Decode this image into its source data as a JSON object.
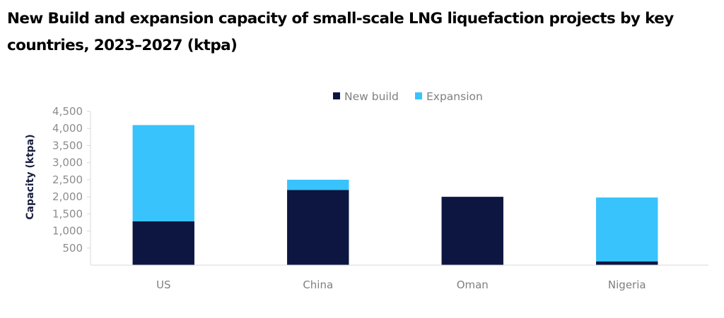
{
  "chart_data": {
    "type": "bar",
    "stacked": true,
    "title": "New Build and expansion capacity of small-scale LNG liquefaction projects by key countries, 2023–2027 (ktpa)",
    "xlabel": "",
    "ylabel": "Capacity (ktpa)",
    "categories": [
      "US",
      "China",
      "Oman",
      "Nigeria"
    ],
    "series": [
      {
        "name": "New build",
        "color": "#0c1640",
        "values": [
          1280,
          2200,
          2000,
          110
        ]
      },
      {
        "name": "Expansion",
        "color": "#38c3fd",
        "values": [
          2820,
          300,
          0,
          1870
        ]
      }
    ],
    "ylim": [
      0,
      4500
    ],
    "yticks": [
      500,
      1000,
      1500,
      2000,
      2500,
      3000,
      3500,
      4000,
      4500
    ],
    "ytick_labels": [
      "500",
      "1,000",
      "1,500",
      "2,000",
      "2,500",
      "3,000",
      "3,500",
      "4,000",
      "4,500"
    ],
    "grid": false,
    "legend_position": "top-center"
  }
}
